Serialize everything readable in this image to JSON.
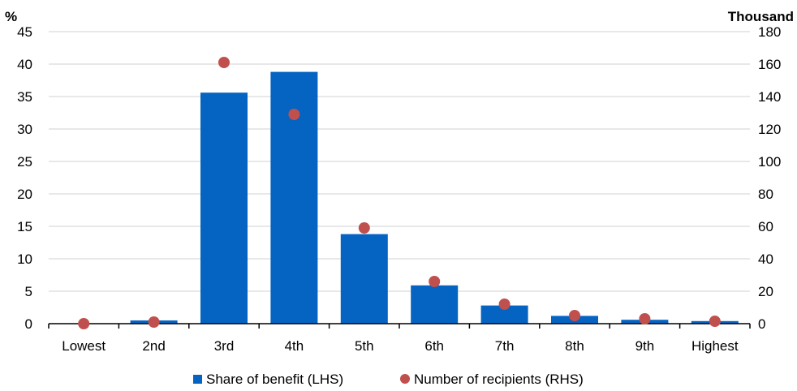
{
  "chart_data": {
    "type": "bar",
    "categories": [
      "Lowest",
      "2nd",
      "3rd",
      "4th",
      "5th",
      "6th",
      "7th",
      "8th",
      "9th",
      "Highest"
    ],
    "series": [
      {
        "name": "Share of benefit (LHS)",
        "kind": "bar",
        "axis": "left",
        "color": "#0563C1",
        "values": [
          0,
          0.5,
          35.6,
          38.8,
          13.8,
          5.9,
          2.8,
          1.2,
          0.6,
          0.4
        ]
      },
      {
        "name": "Number of recipients (RHS)",
        "kind": "scatter",
        "axis": "right",
        "color": "#C0504D",
        "values": [
          0,
          1,
          161,
          129,
          59,
          26,
          12,
          5,
          3,
          1.5
        ]
      }
    ],
    "left_axis": {
      "unit": "%",
      "ylim": [
        0,
        45
      ],
      "ticks": [
        0,
        5,
        10,
        15,
        20,
        25,
        30,
        35,
        40,
        45
      ]
    },
    "right_axis": {
      "unit": "Thousand",
      "ylim": [
        0,
        180
      ],
      "ticks": [
        0,
        20,
        40,
        60,
        80,
        100,
        120,
        140,
        160,
        180
      ]
    },
    "grid": true,
    "legend_position": "bottom"
  }
}
